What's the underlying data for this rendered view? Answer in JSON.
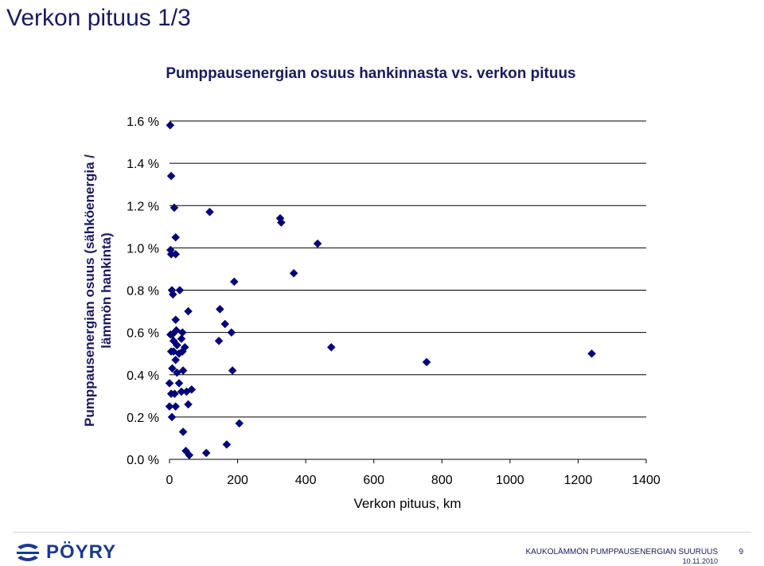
{
  "slide": {
    "title": "Verkon pituus 1/3"
  },
  "footer": {
    "logo_text": "PÖYRY",
    "caption": "KAUKOLÄMMÖN PUMPPAUSENERGIAN SUURUUS",
    "date": "10.11.2010",
    "page": "9"
  },
  "colors": {
    "marker": "#000080",
    "grid": "#000000",
    "title": "#1a1a5e"
  },
  "chart_data": {
    "type": "scatter",
    "title": "Pumppausenergian osuus hankinnasta vs. verkon pituus",
    "xlabel": "Verkon pituus, km",
    "ylabel_lines": [
      "Pumppausenergian osuus (sähköenergia /",
      "lämmön hankinta)"
    ],
    "xlim": [
      0,
      1400
    ],
    "ylim": [
      0.0,
      1.6
    ],
    "xticks": [
      0,
      200,
      400,
      600,
      800,
      1000,
      1200,
      1400
    ],
    "xtick_labels": [
      "0",
      "200",
      "400",
      "600",
      "800",
      "1000",
      "1200",
      "1400"
    ],
    "yticks": [
      0.0,
      0.2,
      0.4,
      0.6,
      0.8,
      1.0,
      1.2,
      1.4,
      1.6
    ],
    "ytick_labels": [
      "0.0 %",
      "0.2 %",
      "0.4 %",
      "0.6 %",
      "0.8 %",
      "1.0 %",
      "1.2 %",
      "1.4 %",
      "1.6 %"
    ],
    "grid": "horizontal",
    "marker": "diamond",
    "points": [
      [
        2,
        1.58
      ],
      [
        5,
        1.34
      ],
      [
        14,
        1.19
      ],
      [
        18,
        1.05
      ],
      [
        3,
        0.99
      ],
      [
        5,
        0.97
      ],
      [
        18,
        0.97
      ],
      [
        7,
        0.8
      ],
      [
        10,
        0.78
      ],
      [
        30,
        0.8
      ],
      [
        55,
        0.7
      ],
      [
        18,
        0.66
      ],
      [
        3,
        0.59
      ],
      [
        8,
        0.59
      ],
      [
        20,
        0.61
      ],
      [
        38,
        0.6
      ],
      [
        12,
        0.56
      ],
      [
        35,
        0.57
      ],
      [
        22,
        0.54
      ],
      [
        45,
        0.53
      ],
      [
        5,
        0.51
      ],
      [
        12,
        0.51
      ],
      [
        28,
        0.5
      ],
      [
        38,
        0.51
      ],
      [
        18,
        0.47
      ],
      [
        8,
        0.43
      ],
      [
        22,
        0.41
      ],
      [
        40,
        0.42
      ],
      [
        0,
        0.36
      ],
      [
        28,
        0.36
      ],
      [
        5,
        0.31
      ],
      [
        15,
        0.31
      ],
      [
        35,
        0.32
      ],
      [
        50,
        0.32
      ],
      [
        65,
        0.33
      ],
      [
        0,
        0.25
      ],
      [
        18,
        0.25
      ],
      [
        55,
        0.26
      ],
      [
        7,
        0.2
      ],
      [
        40,
        0.13
      ],
      [
        48,
        0.04
      ],
      [
        58,
        0.02
      ],
      [
        118,
        1.17
      ],
      [
        108,
        0.03
      ],
      [
        148,
        0.71
      ],
      [
        145,
        0.56
      ],
      [
        163,
        0.64
      ],
      [
        168,
        0.07
      ],
      [
        182,
        0.6
      ],
      [
        190,
        0.84
      ],
      [
        185,
        0.42
      ],
      [
        205,
        0.17
      ],
      [
        325,
        1.14
      ],
      [
        328,
        1.12
      ],
      [
        365,
        0.88
      ],
      [
        435,
        1.02
      ],
      [
        475,
        0.53
      ],
      [
        755,
        0.46
      ],
      [
        1240,
        0.5
      ]
    ]
  }
}
